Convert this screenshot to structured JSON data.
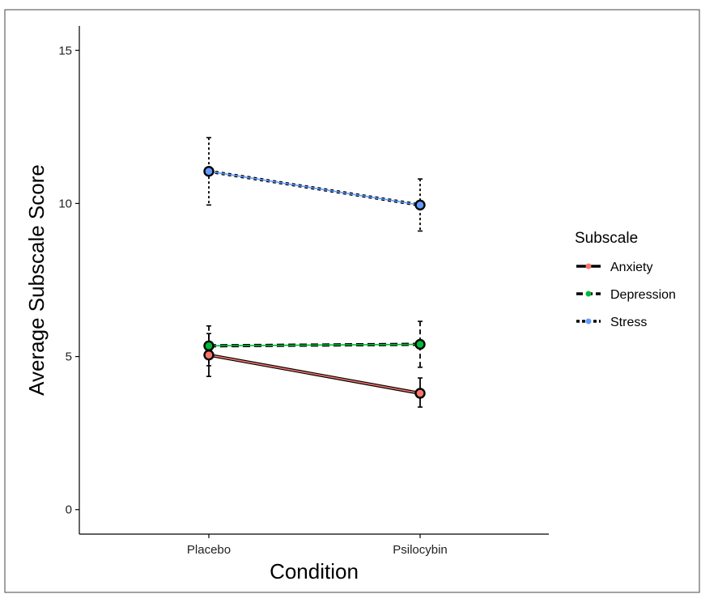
{
  "chart_data": {
    "type": "line",
    "title": "",
    "xlabel": "Condition",
    "ylabel": "Average Subscale Score",
    "categories": [
      "Placebo",
      "Psilocybin"
    ],
    "ylim": [
      -0.8,
      15.8
    ],
    "yticks": [
      0,
      5,
      10,
      15
    ],
    "grid": false,
    "legend": {
      "title": "Subscale",
      "placement": "right"
    },
    "series": [
      {
        "name": "Anxiety",
        "color": "#F8766D",
        "linestyle": "solid",
        "values": [
          5.05,
          3.8
        ],
        "error_low": [
          4.35,
          3.35
        ],
        "error_high": [
          5.75,
          4.3
        ]
      },
      {
        "name": "Depression",
        "color": "#00BA38",
        "linestyle": "dashed",
        "values": [
          5.35,
          5.4
        ],
        "error_low": [
          4.7,
          4.65
        ],
        "error_high": [
          6.0,
          6.15
        ]
      },
      {
        "name": "Stress",
        "color": "#619CFF",
        "linestyle": "dotted",
        "values": [
          11.05,
          9.95
        ],
        "error_low": [
          9.95,
          9.1
        ],
        "error_high": [
          12.15,
          10.8
        ]
      }
    ]
  }
}
